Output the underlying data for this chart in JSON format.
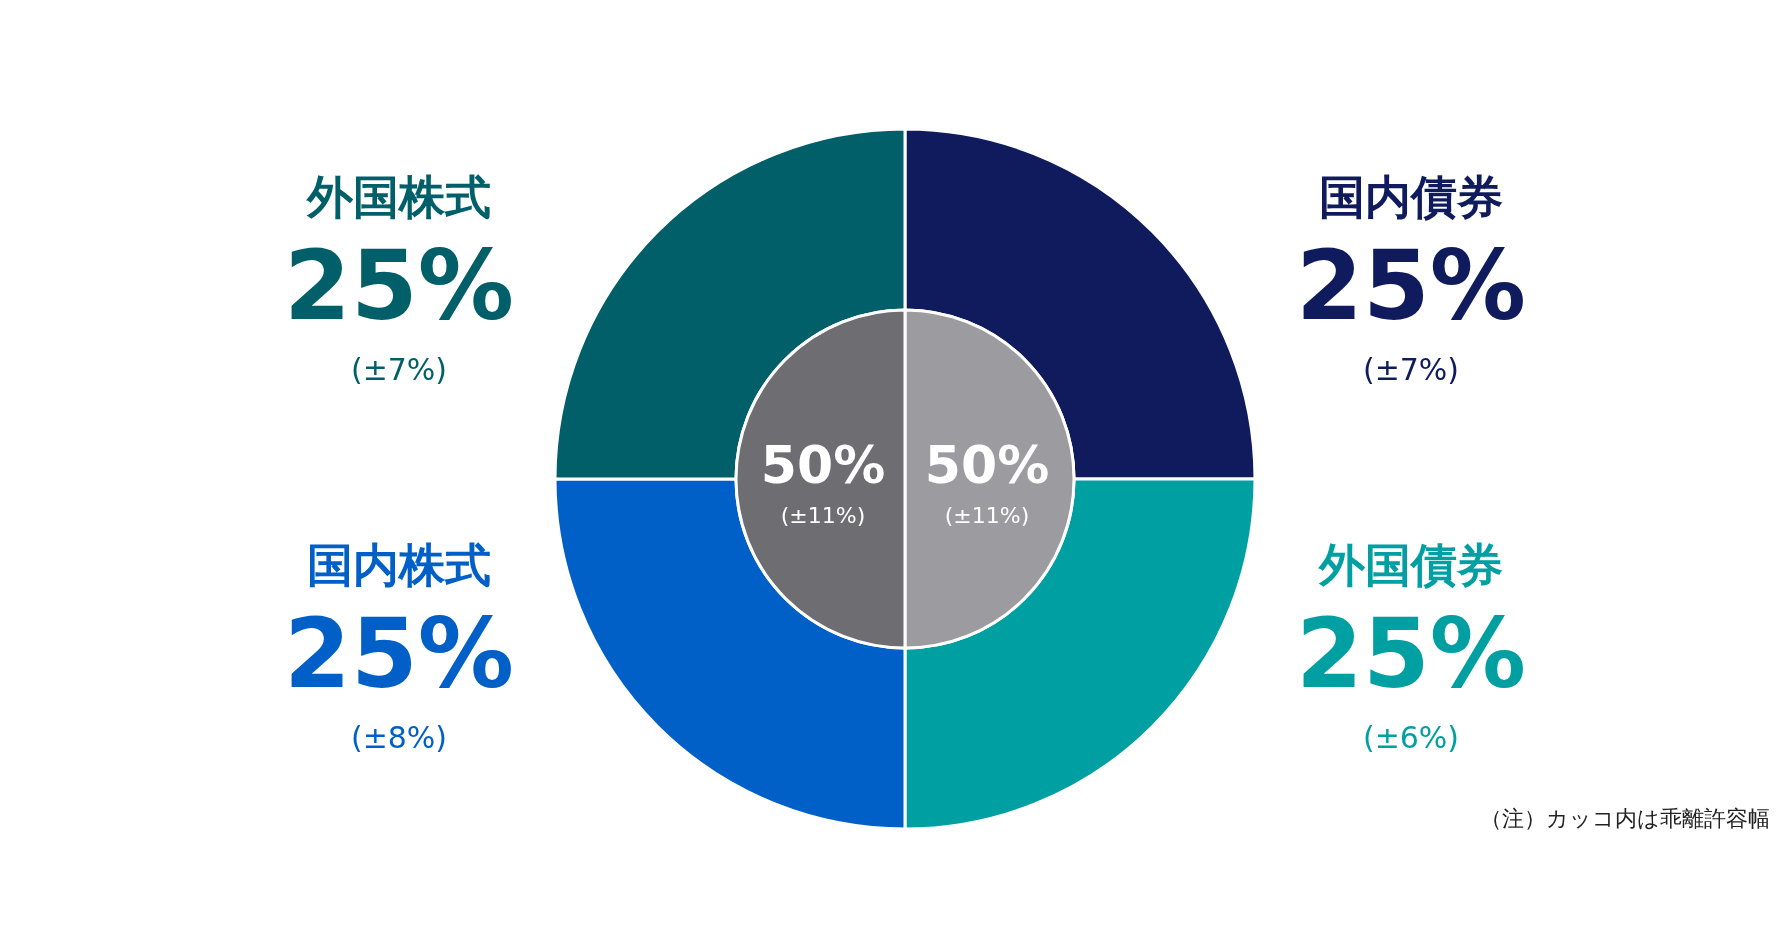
{
  "chart_data": [
    {
      "type": "donut",
      "categories": [
        "国内債券",
        "外国債券",
        "国内株式",
        "外国株式"
      ],
      "values": [
        25,
        25,
        25,
        25
      ],
      "colors": [
        "#0f1b5c",
        "#00a0a2",
        "#0060c8",
        "#005f68"
      ],
      "value_labels": [
        "25%\n(±7%)",
        "25%\n(±6%)",
        "25%\n(±8%)",
        "25%\n(±7%)"
      ],
      "annotations": [
        "（注）カッコ内は乖離許容幅"
      ]
    },
    {
      "type": "pie",
      "categories": [
        null,
        null
      ],
      "values": [
        50,
        50
      ],
      "colors": [
        "#9c9ca0",
        "#6e6e72"
      ],
      "value_labels": [
        "50%\n(±11%)",
        "50%\n(±11%)"
      ]
    }
  ]
}
